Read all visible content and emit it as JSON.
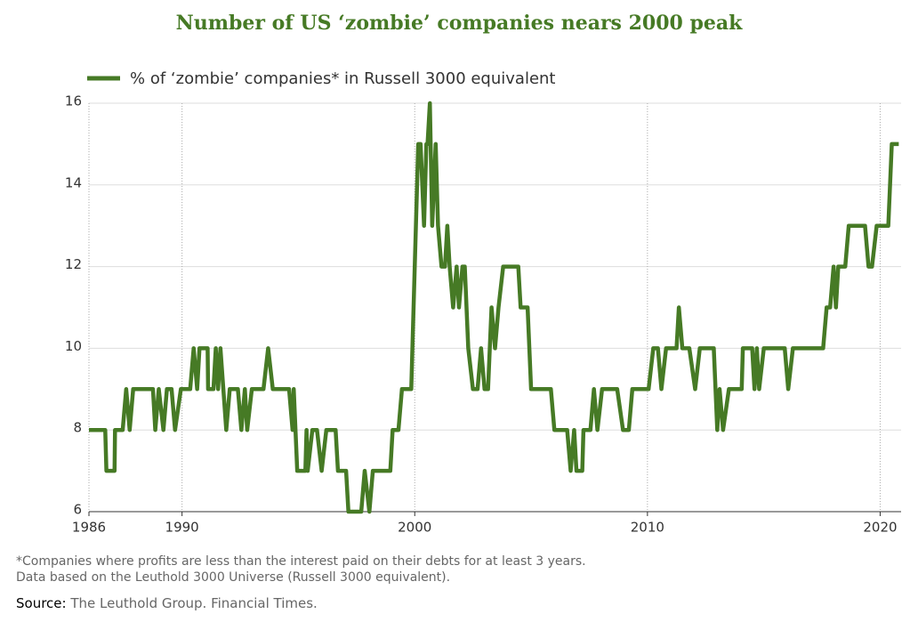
{
  "chart_data": {
    "type": "line",
    "title": "Number of US ‘zombie’ companies nears 2000 peak",
    "notes": [
      "*Companies where profits are less than the interest paid on their debts for at least 3 years.",
      "Data based on the Leuthold 3000 Universe (Russell 3000 equivalent)."
    ],
    "source_label": "Source:",
    "source_text": "The Leuthold Group. Financial Times.",
    "x": [
      1986.0,
      1986.7,
      1986.75,
      1987.1,
      1987.12,
      1987.45,
      1987.6,
      1987.75,
      1987.9,
      1988.75,
      1988.85,
      1989.0,
      1989.2,
      1989.35,
      1989.55,
      1989.7,
      1989.95,
      1990.35,
      1990.5,
      1990.65,
      1990.75,
      1991.1,
      1991.12,
      1991.35,
      1991.45,
      1991.55,
      1991.65,
      1991.9,
      1992.05,
      1992.4,
      1992.55,
      1992.7,
      1992.8,
      1993.0,
      1993.5,
      1993.7,
      1993.9,
      1994.6,
      1994.75,
      1994.8,
      1994.95,
      1995.3,
      1995.35,
      1995.4,
      1995.6,
      1995.8,
      1996.0,
      1996.2,
      1996.6,
      1996.7,
      1997.05,
      1997.15,
      1997.7,
      1997.85,
      1998.05,
      1998.2,
      1998.95,
      1999.05,
      1999.3,
      1999.45,
      1999.85,
      2000.15,
      2000.25,
      2000.4,
      2000.5,
      2000.55,
      2000.65,
      2000.75,
      2000.9,
      2001.0,
      2001.15,
      2001.3,
      2001.4,
      2001.5,
      2001.65,
      2001.8,
      2001.9,
      2002.05,
      2002.15,
      2002.3,
      2002.5,
      2002.7,
      2002.85,
      2003.0,
      2003.15,
      2003.3,
      2003.45,
      2003.6,
      2003.8,
      2004.45,
      2004.55,
      2004.85,
      2005.0,
      2005.85,
      2006.0,
      2006.55,
      2006.7,
      2006.85,
      2006.95,
      2007.2,
      2007.25,
      2007.55,
      2007.7,
      2007.85,
      2008.05,
      2008.7,
      2008.95,
      2009.2,
      2009.35,
      2010.05,
      2010.25,
      2010.45,
      2010.6,
      2010.8,
      2011.25,
      2011.35,
      2011.5,
      2011.8,
      2012.05,
      2012.25,
      2012.85,
      2013.0,
      2013.1,
      2013.25,
      2013.5,
      2014.05,
      2014.1,
      2014.5,
      2014.6,
      2014.7,
      2014.8,
      2015.0,
      2015.9,
      2016.05,
      2016.25,
      2017.55,
      2017.7,
      2017.85,
      2018.0,
      2018.1,
      2018.2,
      2018.5,
      2018.65,
      2019.35,
      2019.5,
      2019.65,
      2019.85,
      2020.35,
      2020.5,
      2020.8
    ],
    "series": [
      {
        "name": "% of ‘zombie’ companies* in Russell 3000 equivalent",
        "color": "#467a25",
        "values": [
          8,
          8,
          7,
          7,
          8,
          8,
          9,
          8,
          9,
          9,
          8,
          9,
          8,
          9,
          9,
          8,
          9,
          9,
          10,
          9,
          10,
          10,
          9,
          9,
          10,
          9,
          10,
          8,
          9,
          9,
          8,
          9,
          8,
          9,
          9,
          10,
          9,
          9,
          8,
          9,
          7,
          7,
          8,
          7,
          8,
          8,
          7,
          8,
          8,
          7,
          7,
          6,
          6,
          7,
          6,
          7,
          7,
          8,
          8,
          9,
          9,
          15,
          15,
          13,
          15,
          15,
          16,
          13,
          15,
          13,
          12,
          12,
          13,
          12,
          11,
          12,
          11,
          12,
          12,
          10,
          9,
          9,
          10,
          9,
          9,
          11,
          10,
          11,
          12,
          12,
          11,
          11,
          9,
          9,
          8,
          8,
          7,
          8,
          7,
          7,
          8,
          8,
          9,
          8,
          9,
          9,
          8,
          8,
          9,
          9,
          10,
          10,
          9,
          10,
          10,
          11,
          10,
          10,
          9,
          10,
          10,
          8,
          9,
          8,
          9,
          9,
          10,
          10,
          9,
          10,
          9,
          10,
          10,
          9,
          10,
          10,
          11,
          11,
          12,
          11,
          12,
          12,
          13,
          13,
          12,
          12,
          13,
          13,
          15,
          15
        ]
      }
    ],
    "xlim": [
      1986,
      2020.9
    ],
    "xticks": [
      1986,
      1990,
      2000,
      2010,
      2020
    ],
    "ylim": [
      6,
      16
    ],
    "yticks": [
      6,
      8,
      10,
      12,
      14,
      16
    ],
    "grid": true
  }
}
